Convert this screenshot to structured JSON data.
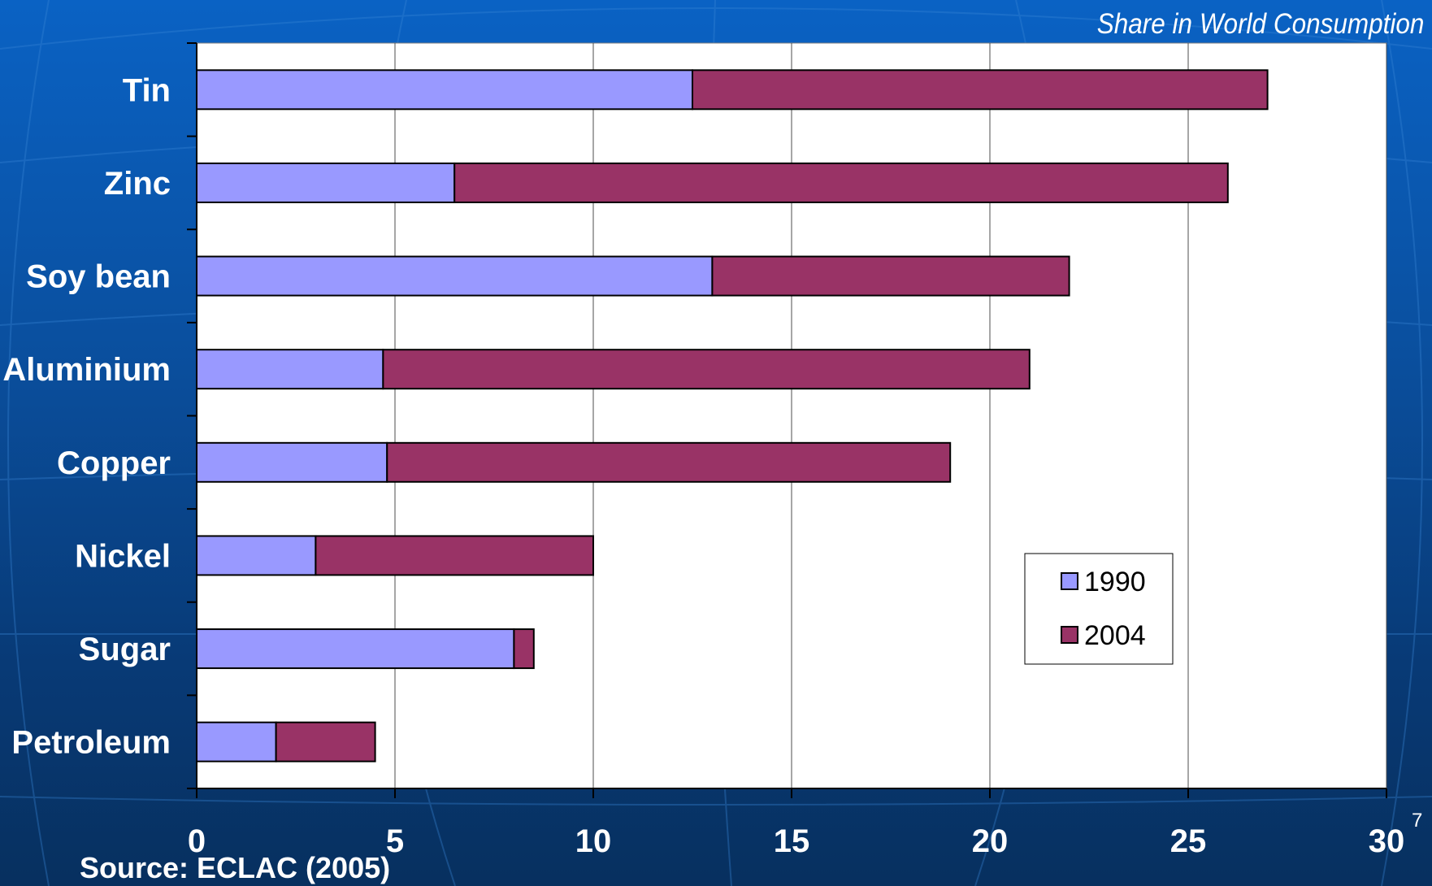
{
  "header": {
    "subtitle": "Share in World Consumption"
  },
  "footer": {
    "source": "Source: ECLAC (2005)",
    "slide_number": "7"
  },
  "colors": {
    "series_1990": "#9999ff",
    "series_2004": "#993366",
    "plot_bg": "#ffffff"
  },
  "chart_data": {
    "type": "bar",
    "orientation": "horizontal",
    "stacked": true,
    "title": "",
    "xlabel": "",
    "ylabel": "",
    "categories": [
      "Tin",
      "Zinc",
      "Soy bean",
      "Aluminium",
      "Copper",
      "Nickel",
      "Sugar",
      "Petroleum"
    ],
    "series": [
      {
        "name": "1990",
        "values": [
          12.5,
          6.5,
          13,
          4.7,
          4.8,
          3,
          8,
          2
        ]
      },
      {
        "name": "2004",
        "values": [
          14.5,
          19.5,
          9,
          16.3,
          14.2,
          7,
          0.5,
          2.5
        ]
      }
    ],
    "xlim": [
      0,
      30
    ],
    "xticks": [
      0,
      5,
      10,
      15,
      20,
      25,
      30
    ],
    "grid": "vertical",
    "legend": "bottom-right"
  }
}
